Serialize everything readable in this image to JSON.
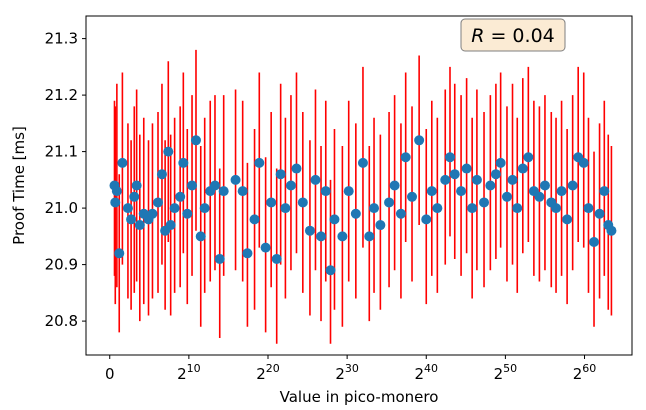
{
  "chart_data": {
    "type": "scatter",
    "xlabel": "Value in pico-monero",
    "ylabel": "Proof Time [ms]",
    "x_scale": "log2",
    "xlim_exponent": [
      -3,
      66
    ],
    "ylim": [
      20.74,
      21.34
    ],
    "x_tick_exponents": [
      10,
      20,
      30,
      40,
      50,
      60
    ],
    "x_ticks": [
      {
        "base": "0",
        "sup": ""
      },
      {
        "base": "2",
        "sup": "10"
      },
      {
        "base": "2",
        "sup": "20"
      },
      {
        "base": "2",
        "sup": "30"
      },
      {
        "base": "2",
        "sup": "40"
      },
      {
        "base": "2",
        "sup": "50"
      },
      {
        "base": "2",
        "sup": "60"
      }
    ],
    "y_ticks": [
      "20.8",
      "20.9",
      "21.0",
      "21.1",
      "21.2",
      "21.3"
    ],
    "y_tick_values": [
      20.8,
      20.9,
      21.0,
      21.1,
      21.2,
      21.3
    ],
    "grid": false,
    "legend": "none",
    "error_bar_color": "#ff0000",
    "point_color": "#1f77b4",
    "annotation": {
      "text_var": "R",
      "text_rest": " = 0.04",
      "position": "top-right",
      "box_fill": "#fbebd4",
      "box_edge": "#7f7f7f"
    },
    "series": [
      {
        "points": [
          [
            0.6,
            21.04,
            20.88,
            21.19
          ],
          [
            0.7,
            21.01,
            20.83,
            21.18
          ],
          [
            0.9,
            21.03,
            20.86,
            21.22
          ],
          [
            1.2,
            20.92,
            20.78,
            21.06
          ],
          [
            1.6,
            21.08,
            20.9,
            21.24
          ],
          [
            2.3,
            21.0,
            20.84,
            21.15
          ],
          [
            2.7,
            20.98,
            20.82,
            21.12
          ],
          [
            3.1,
            21.02,
            20.85,
            21.18
          ],
          [
            3.4,
            21.04,
            20.87,
            21.21
          ],
          [
            3.8,
            20.97,
            20.8,
            21.13
          ],
          [
            4.3,
            20.99,
            20.83,
            21.16
          ],
          [
            4.9,
            20.98,
            20.81,
            21.12
          ],
          [
            5.4,
            20.99,
            20.84,
            21.15
          ],
          [
            6.1,
            21.01,
            20.85,
            21.17
          ],
          [
            6.6,
            21.06,
            20.9,
            21.22
          ],
          [
            7.0,
            20.96,
            20.82,
            21.12
          ],
          [
            7.4,
            21.1,
            20.94,
            21.26
          ],
          [
            7.7,
            20.97,
            20.81,
            21.13
          ],
          [
            8.2,
            21.0,
            20.85,
            21.16
          ],
          [
            8.9,
            21.02,
            20.86,
            21.18
          ],
          [
            9.3,
            21.08,
            20.92,
            21.24
          ],
          [
            9.8,
            20.99,
            20.83,
            21.14
          ],
          [
            10.4,
            21.04,
            20.88,
            21.2
          ],
          [
            10.9,
            21.12,
            20.96,
            21.28
          ],
          [
            11.5,
            20.95,
            20.79,
            21.11
          ],
          [
            12.0,
            21.0,
            20.85,
            21.16
          ],
          [
            12.7,
            21.03,
            20.87,
            21.19
          ],
          [
            13.3,
            21.04,
            20.89,
            21.2
          ],
          [
            13.9,
            20.91,
            20.77,
            21.07
          ],
          [
            14.4,
            21.03,
            20.88,
            21.2
          ],
          [
            15.9,
            21.05,
            20.89,
            21.21
          ],
          [
            16.8,
            21.03,
            20.87,
            21.19
          ],
          [
            17.4,
            20.92,
            20.79,
            21.08
          ],
          [
            18.3,
            20.98,
            20.82,
            21.14
          ],
          [
            18.9,
            21.08,
            20.93,
            21.24
          ],
          [
            19.7,
            20.93,
            20.78,
            21.09
          ],
          [
            20.4,
            21.01,
            20.86,
            21.17
          ],
          [
            21.1,
            20.91,
            20.76,
            21.07
          ],
          [
            21.6,
            21.06,
            20.9,
            21.22
          ],
          [
            22.2,
            21.0,
            20.84,
            21.16
          ],
          [
            22.9,
            21.04,
            20.89,
            21.2
          ],
          [
            23.6,
            21.07,
            20.92,
            21.24
          ],
          [
            24.4,
            21.01,
            20.85,
            21.17
          ],
          [
            25.3,
            20.96,
            20.81,
            21.12
          ],
          [
            26.0,
            21.05,
            20.89,
            21.21
          ],
          [
            26.7,
            20.95,
            20.8,
            21.11
          ],
          [
            27.3,
            21.03,
            20.87,
            21.19
          ],
          [
            27.9,
            20.89,
            20.76,
            21.05
          ],
          [
            28.4,
            20.98,
            20.82,
            21.14
          ],
          [
            29.4,
            20.95,
            20.79,
            21.11
          ],
          [
            30.2,
            21.03,
            20.87,
            21.19
          ],
          [
            31.1,
            20.99,
            20.84,
            21.15
          ],
          [
            32.0,
            21.08,
            20.93,
            21.25
          ],
          [
            32.8,
            20.95,
            20.8,
            21.11
          ],
          [
            33.4,
            21.0,
            20.85,
            21.16
          ],
          [
            34.2,
            20.97,
            20.82,
            21.13
          ],
          [
            35.3,
            21.01,
            20.86,
            21.17
          ],
          [
            36.0,
            21.04,
            20.89,
            21.2
          ],
          [
            36.8,
            20.99,
            20.84,
            21.15
          ],
          [
            37.4,
            21.09,
            20.94,
            21.24
          ],
          [
            38.2,
            21.02,
            20.87,
            21.18
          ],
          [
            39.1,
            21.12,
            20.97,
            21.27
          ],
          [
            40.0,
            20.98,
            20.83,
            21.14
          ],
          [
            40.7,
            21.03,
            20.88,
            21.19
          ],
          [
            41.4,
            21.0,
            20.85,
            21.16
          ],
          [
            42.4,
            21.05,
            20.9,
            21.21
          ],
          [
            43.0,
            21.09,
            20.95,
            21.25
          ],
          [
            43.6,
            21.06,
            20.91,
            21.22
          ],
          [
            44.4,
            21.03,
            20.88,
            21.2
          ],
          [
            45.1,
            21.07,
            20.92,
            21.23
          ],
          [
            45.8,
            21.0,
            20.84,
            21.16
          ],
          [
            46.4,
            21.05,
            20.89,
            21.21
          ],
          [
            47.3,
            21.01,
            20.86,
            21.17
          ],
          [
            48.1,
            21.04,
            20.89,
            21.2
          ],
          [
            48.8,
            21.06,
            20.91,
            21.22
          ],
          [
            49.4,
            21.08,
            20.93,
            21.24
          ],
          [
            50.2,
            21.02,
            20.87,
            21.18
          ],
          [
            50.9,
            21.05,
            20.9,
            21.22
          ],
          [
            51.5,
            21.0,
            20.85,
            21.16
          ],
          [
            52.2,
            21.07,
            20.92,
            21.23
          ],
          [
            52.9,
            21.09,
            20.94,
            21.25
          ],
          [
            53.6,
            21.03,
            20.88,
            21.19
          ],
          [
            54.3,
            21.02,
            20.87,
            21.18
          ],
          [
            55.0,
            21.04,
            20.89,
            21.2
          ],
          [
            55.8,
            21.01,
            20.86,
            21.17
          ],
          [
            56.4,
            21.0,
            20.85,
            21.16
          ],
          [
            57.1,
            21.03,
            20.88,
            21.19
          ],
          [
            57.8,
            20.98,
            20.83,
            21.14
          ],
          [
            58.5,
            21.04,
            20.89,
            21.2
          ],
          [
            59.2,
            21.09,
            20.94,
            21.25
          ],
          [
            59.9,
            21.08,
            20.93,
            21.24
          ],
          [
            60.5,
            21.0,
            20.85,
            21.16
          ],
          [
            61.2,
            20.94,
            20.79,
            21.1
          ],
          [
            61.9,
            20.99,
            20.84,
            21.15
          ],
          [
            62.5,
            21.03,
            20.88,
            21.19
          ],
          [
            63.0,
            20.97,
            20.82,
            21.13
          ],
          [
            63.4,
            20.96,
            20.81,
            21.11
          ]
        ]
      }
    ]
  }
}
